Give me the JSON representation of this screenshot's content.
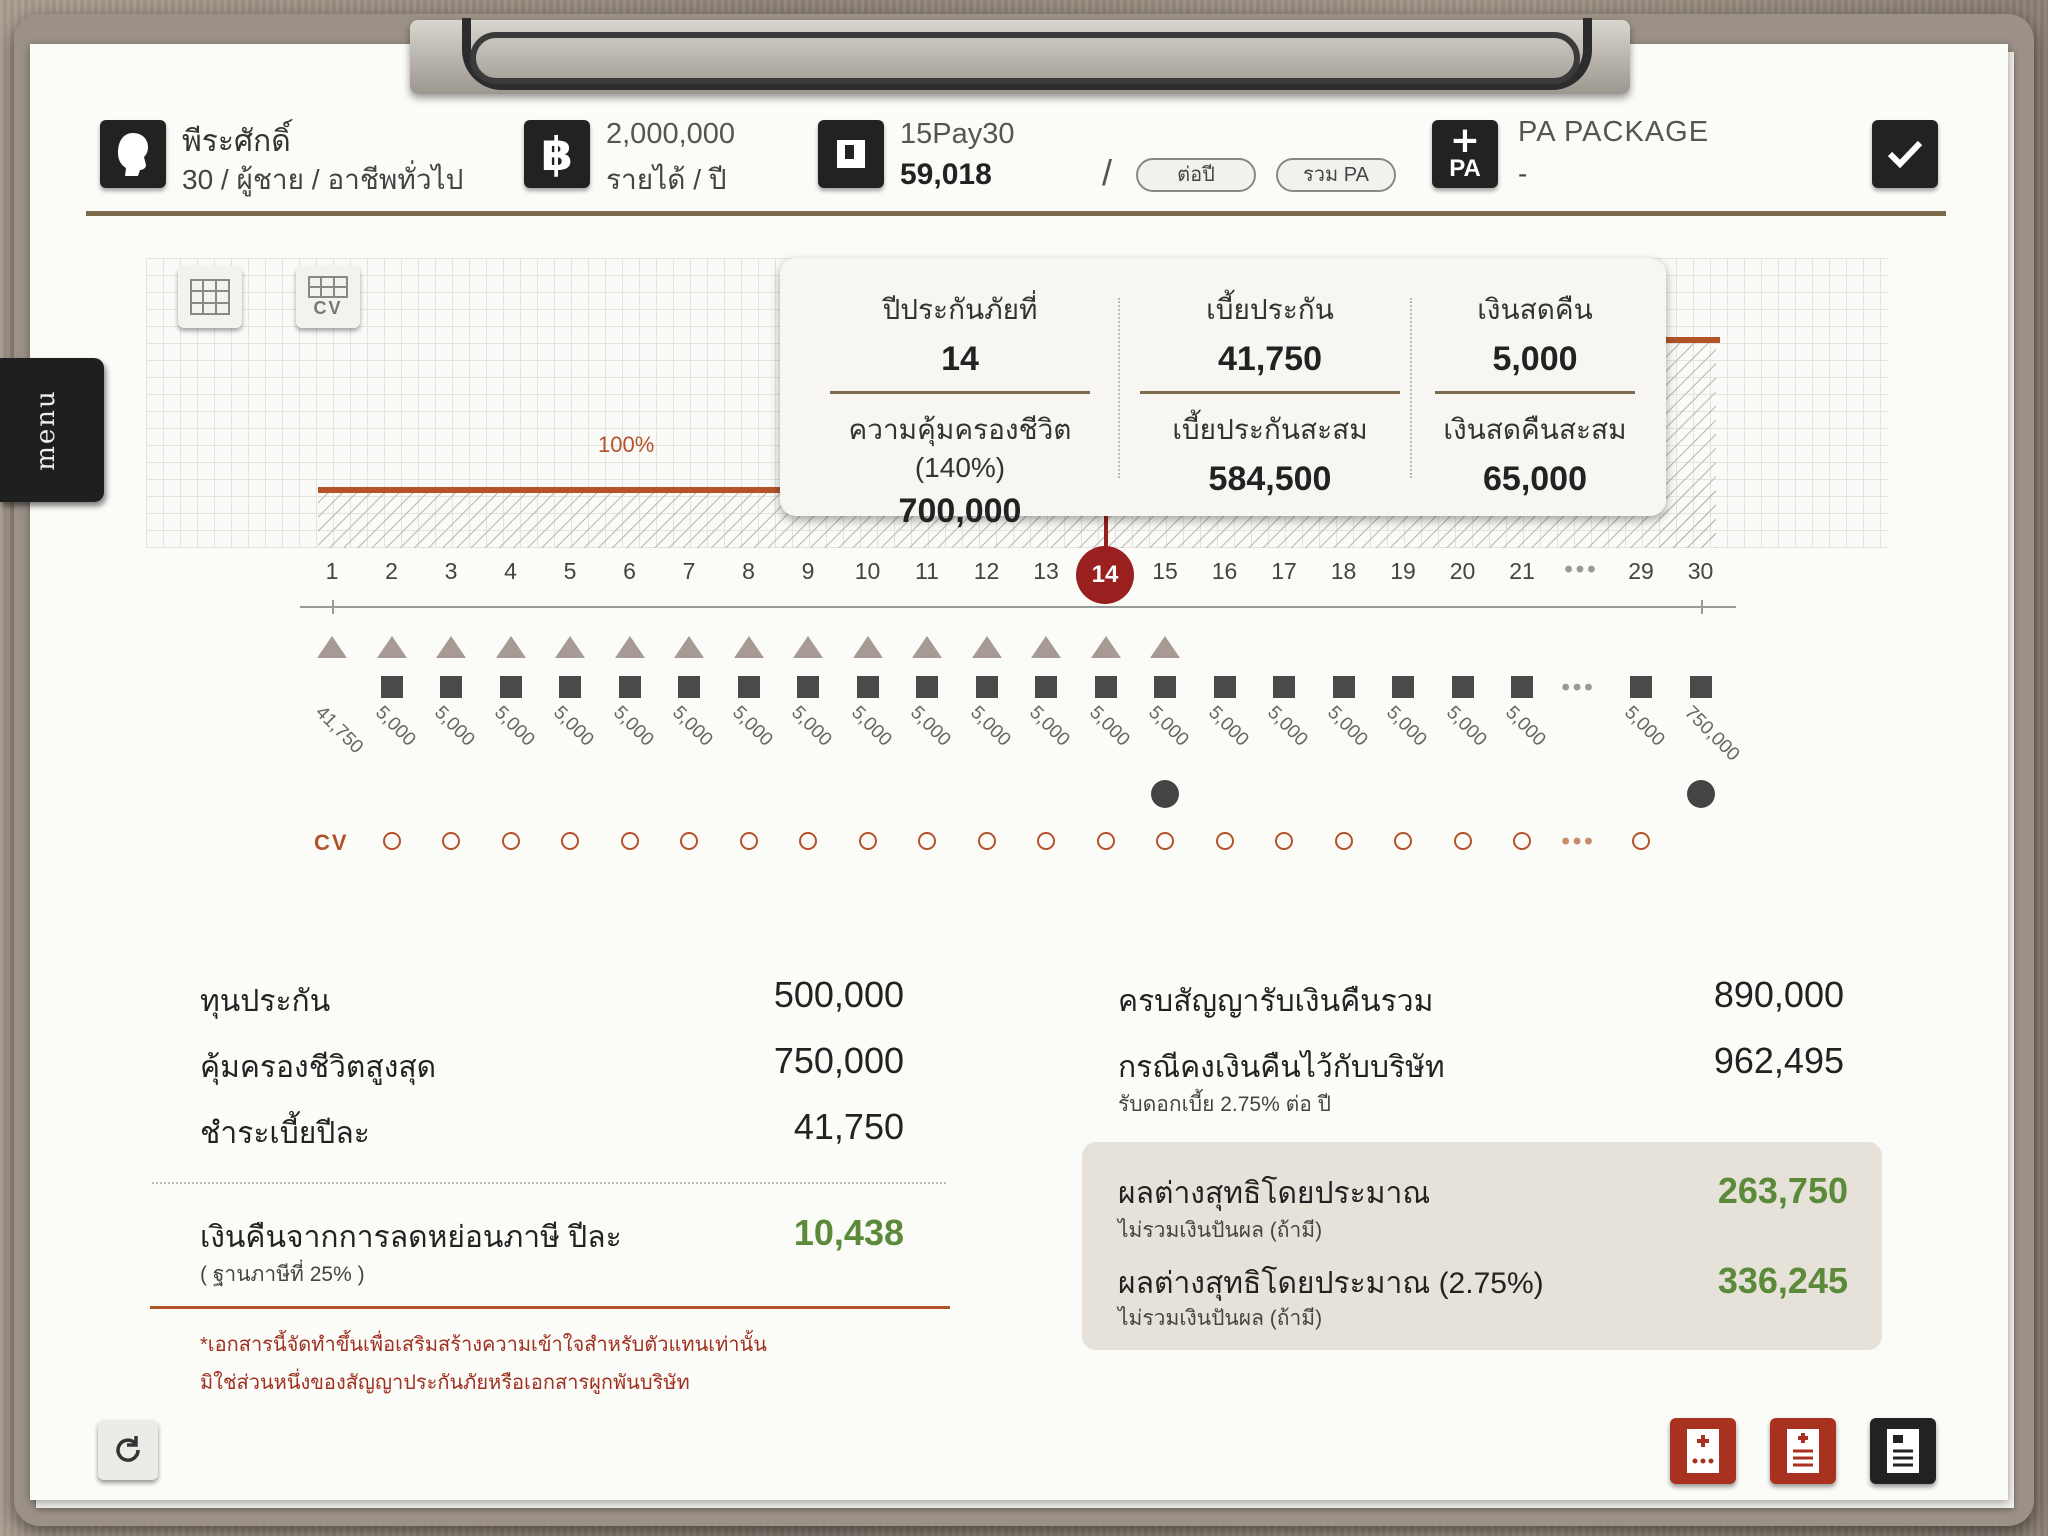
{
  "header": {
    "customer_name": "พีระศักดิ์",
    "customer_info": "30 / ผู้ชาย / อาชีพทั่วไป",
    "income_value": "2,000,000",
    "income_label": "รายได้ / ปี",
    "plan_name": "15Pay30",
    "plan_premium": "59,018",
    "slash": "/",
    "per_year_button": "ต่อปี",
    "include_pa_button": "รวม PA",
    "pa_icon_label": "PA",
    "pa_package_title": "PA PACKAGE",
    "pa_package_value": "-"
  },
  "sidebar": {
    "menu_label": "menu"
  },
  "toolbar": {
    "cv_button_label": "CV"
  },
  "chart": {
    "percent_label": "100%",
    "selected_year": "14",
    "year_labels": [
      "1",
      "2",
      "3",
      "4",
      "5",
      "6",
      "7",
      "8",
      "9",
      "10",
      "11",
      "12",
      "13",
      "15",
      "16",
      "17",
      "18",
      "19",
      "20",
      "21",
      "•••",
      "29",
      "30"
    ],
    "payment_labels": [
      "41,750",
      "5,000",
      "5,000",
      "5,000",
      "5,000",
      "5,000",
      "5,000",
      "5,000",
      "5,000",
      "5,000",
      "5,000",
      "5,000",
      "5,000",
      "5,000",
      "5,000",
      "5,000",
      "5,000",
      "5,000",
      "5,000",
      "5,000",
      "5,000",
      "5,000",
      "750,000"
    ],
    "ellipsis": "•••",
    "cv_label": "CV"
  },
  "popup": {
    "year_label": "ปีประกันภัยที่",
    "year_value": "14",
    "premium_label": "เบี้ยประกัน",
    "premium_value": "41,750",
    "cash_back_label": "เงินสดคืน",
    "cash_back_value": "5,000",
    "coverage_label": "ความคุ้มครองชีวิต (140%)",
    "coverage_value": "700,000",
    "cum_premium_label": "เบี้ยประกันสะสม",
    "cum_premium_value": "584,500",
    "cum_cash_label": "เงินสดคืนสะสม",
    "cum_cash_value": "65,000"
  },
  "summary": {
    "sum_insured_label": "ทุนประกัน",
    "sum_insured_value": "500,000",
    "max_coverage_label": "คุ้มครองชีวิตสูงสุด",
    "max_coverage_value": "750,000",
    "annual_premium_label": "ชำระเบี้ยปีละ",
    "annual_premium_value": "41,750",
    "tax_refund_label": "เงินคืนจากการลดหย่อนภาษี ปีละ",
    "tax_refund_sub": "( ฐานภาษีที่ 25% )",
    "tax_refund_value": "10,438",
    "maturity_label": "ครบสัญญารับเงินคืนรวม",
    "maturity_value": "890,000",
    "deposit_label": "กรณีคงเงินคืนไว้กับบริษัท",
    "deposit_sub": "รับดอกเบี้ย 2.75% ต่อ ปี",
    "deposit_value": "962,495",
    "net_label": "ผลต่างสุทธิโดยประมาณ",
    "net_sub": "ไม่รวมเงินปันผล (ถ้ามี)",
    "net_value": "263,750",
    "net2_label": "ผลต่างสุทธิโดยประมาณ (2.75%)",
    "net2_sub": "ไม่รวมเงินปันผล (ถ้ามี)",
    "net2_value": "336,245",
    "disclaimer_1": "*เอกสารนี้จัดทำขึ้นเพื่อเสริมสร้างความเข้าใจสำหรับตัวแทนเท่านั้น",
    "disclaimer_2": "มิใช่ส่วนหนึ่งของสัญญาประกันภัยหรือเอกสารผูกพันบริษัท"
  },
  "colors": {
    "accent_red": "#9a1f1f",
    "brown_rule": "#7d6a4f",
    "orange_line": "#b4532a",
    "green_value": "#5a8a3a"
  }
}
